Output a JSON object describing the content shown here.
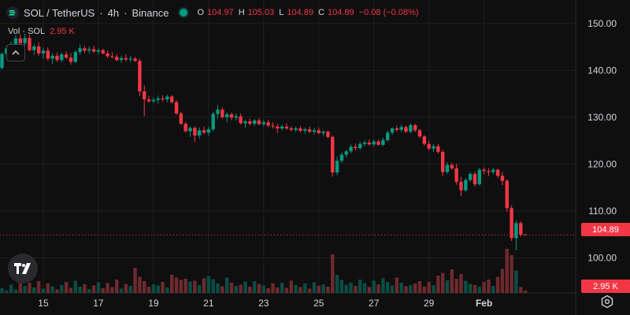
{
  "header": {
    "symbol": "SOL / TetherUS",
    "interval": "4h",
    "exchange": "Binance",
    "separator": "·",
    "ohlc": {
      "o_label": "O",
      "o_value": "104.97",
      "h_label": "H",
      "h_value": "105.03",
      "l_label": "L",
      "l_value": "104.89",
      "c_label": "C",
      "c_value": "104.89",
      "change": "−0.08 (−0.08%)"
    }
  },
  "volume_legend": {
    "label": "Vol · SOL",
    "value": "2.95 K"
  },
  "badges": {
    "last_price": "104.89",
    "last_volume": "2.95 K"
  },
  "colors": {
    "up": "#089981",
    "down": "#f23645",
    "up_volume": "#0b4d44",
    "down_volume": "#6e2a2e",
    "background": "#0f0f0f",
    "grid": "#1f1f1f",
    "text": "#d1d4dc"
  },
  "icons": [
    "symbol-icon",
    "market-status-icon",
    "collapse-icon",
    "tradingview-logo-icon",
    "settings-icon"
  ],
  "chart_data": {
    "type": "candlestick",
    "title": "SOL / TetherUS · 4h · Binance",
    "y_ticks": [
      100,
      110,
      120,
      130,
      140,
      150
    ],
    "y_tick_labels": [
      "100.00",
      "110.00",
      "120.00",
      "130.00",
      "140.00",
      "150.00"
    ],
    "ylim": [
      92.5,
      155
    ],
    "x_tick_labels": [
      "15",
      "17",
      "19",
      "21",
      "23",
      "25",
      "27",
      "29",
      "Feb"
    ],
    "x_tick_candle_index": [
      9,
      21,
      33,
      45,
      57,
      69,
      81,
      93,
      105
    ],
    "grid": true,
    "candles": [
      [
        140.5,
        143.8,
        140.2,
        143.5
      ],
      [
        143.5,
        145.2,
        142.9,
        144.7
      ],
      [
        144.7,
        146.1,
        143.8,
        145.6
      ],
      [
        145.6,
        147.5,
        145.0,
        146.8
      ],
      [
        146.8,
        147.6,
        145.3,
        145.8
      ],
      [
        145.8,
        147.8,
        145.2,
        146.9
      ],
      [
        146.9,
        147.6,
        144.0,
        144.3
      ],
      [
        144.3,
        145.6,
        143.3,
        145.1
      ],
      [
        145.1,
        146.0,
        143.1,
        143.6
      ],
      [
        143.6,
        144.8,
        142.5,
        144.2
      ],
      [
        144.2,
        144.9,
        142.1,
        142.5
      ],
      [
        142.5,
        143.6,
        141.4,
        143.1
      ],
      [
        143.1,
        143.8,
        141.8,
        142.2
      ],
      [
        142.2,
        143.8,
        141.7,
        143.4
      ],
      [
        143.4,
        144.1,
        142.4,
        142.7
      ],
      [
        142.7,
        143.7,
        141.2,
        141.8
      ],
      [
        141.8,
        144.3,
        141.5,
        143.9
      ],
      [
        143.9,
        145.5,
        143.3,
        144.7
      ],
      [
        144.7,
        145.2,
        143.7,
        144.2
      ],
      [
        144.2,
        145.1,
        143.6,
        144.5
      ],
      [
        144.5,
        145.2,
        143.7,
        144.0
      ],
      [
        144.0,
        144.7,
        143.3,
        144.3
      ],
      [
        144.3,
        144.6,
        143.4,
        143.6
      ],
      [
        143.6,
        144.2,
        142.6,
        143.0
      ],
      [
        143.0,
        143.9,
        142.5,
        142.9
      ],
      [
        142.9,
        143.4,
        141.9,
        142.2
      ],
      [
        142.2,
        143.1,
        141.6,
        142.6
      ],
      [
        142.6,
        143.4,
        141.9,
        142.3
      ],
      [
        142.3,
        143.1,
        141.7,
        142.5
      ],
      [
        142.5,
        142.9,
        141.8,
        142.0
      ],
      [
        142.0,
        142.5,
        134.5,
        135.5
      ],
      [
        135.5,
        136.8,
        130.2,
        133.8
      ],
      [
        133.8,
        134.6,
        133.0,
        133.4
      ],
      [
        133.4,
        134.3,
        133.0,
        133.7
      ],
      [
        133.7,
        134.6,
        132.9,
        134.0
      ],
      [
        134.0,
        134.7,
        133.4,
        133.8
      ],
      [
        133.8,
        134.8,
        133.2,
        134.4
      ],
      [
        134.4,
        134.7,
        132.9,
        133.2
      ],
      [
        133.2,
        133.7,
        130.5,
        130.8
      ],
      [
        130.8,
        131.2,
        128.3,
        128.6
      ],
      [
        128.6,
        129.0,
        126.7,
        127.0
      ],
      [
        127.0,
        128.1,
        125.8,
        127.7
      ],
      [
        127.7,
        128.1,
        124.7,
        126.1
      ],
      [
        126.1,
        127.8,
        125.4,
        127.2
      ],
      [
        127.2,
        128.0,
        126.3,
        126.7
      ],
      [
        126.7,
        127.9,
        126.0,
        127.4
      ],
      [
        127.4,
        131.1,
        127.0,
        130.7
      ],
      [
        130.7,
        132.6,
        129.7,
        131.6
      ],
      [
        131.6,
        132.1,
        129.7,
        130.0
      ],
      [
        130.0,
        131.0,
        128.9,
        130.6
      ],
      [
        130.6,
        131.0,
        129.4,
        129.9
      ],
      [
        129.9,
        130.8,
        129.3,
        130.2
      ],
      [
        130.2,
        130.8,
        128.4,
        128.7
      ],
      [
        128.7,
        129.5,
        127.8,
        129.1
      ],
      [
        129.1,
        129.7,
        128.2,
        128.6
      ],
      [
        128.6,
        129.6,
        128.1,
        129.3
      ],
      [
        129.3,
        129.8,
        128.3,
        128.5
      ],
      [
        128.5,
        129.4,
        128.0,
        128.9
      ],
      [
        128.9,
        129.4,
        127.9,
        128.2
      ],
      [
        128.2,
        128.9,
        127.6,
        128.0
      ],
      [
        128.0,
        128.6,
        126.6,
        127.6
      ],
      [
        127.6,
        128.4,
        127.2,
        128.0
      ],
      [
        128.0,
        128.7,
        127.3,
        127.6
      ],
      [
        127.6,
        128.1,
        126.9,
        127.3
      ],
      [
        127.3,
        128.0,
        126.8,
        127.6
      ],
      [
        127.6,
        128.1,
        126.7,
        127.1
      ],
      [
        127.1,
        127.8,
        126.5,
        127.4
      ],
      [
        127.4,
        128.0,
        126.6,
        126.9
      ],
      [
        126.9,
        127.7,
        126.3,
        127.2
      ],
      [
        127.2,
        127.8,
        126.4,
        126.6
      ],
      [
        126.6,
        127.2,
        126.0,
        126.9
      ],
      [
        126.9,
        127.2,
        125.5,
        125.8
      ],
      [
        125.8,
        126.1,
        117.3,
        118.2
      ],
      [
        118.2,
        121.6,
        117.6,
        120.7
      ],
      [
        120.7,
        122.5,
        120.2,
        122.0
      ],
      [
        122.0,
        123.1,
        121.4,
        122.7
      ],
      [
        122.7,
        124.2,
        122.3,
        123.7
      ],
      [
        123.7,
        124.4,
        122.9,
        123.4
      ],
      [
        123.4,
        124.8,
        123.0,
        124.3
      ],
      [
        124.3,
        125.1,
        123.8,
        124.6
      ],
      [
        124.6,
        125.3,
        123.9,
        124.2
      ],
      [
        124.2,
        125.2,
        123.7,
        124.8
      ],
      [
        124.8,
        125.2,
        123.9,
        124.1
      ],
      [
        124.1,
        125.6,
        123.8,
        125.1
      ],
      [
        125.1,
        127.2,
        124.8,
        126.7
      ],
      [
        126.7,
        127.9,
        126.2,
        127.6
      ],
      [
        127.6,
        128.2,
        126.9,
        127.3
      ],
      [
        127.3,
        128.4,
        126.8,
        127.9
      ],
      [
        127.9,
        128.2,
        126.6,
        126.9
      ],
      [
        126.9,
        128.7,
        126.5,
        128.3
      ],
      [
        128.3,
        128.6,
        126.8,
        127.2
      ],
      [
        127.2,
        127.5,
        125.5,
        125.9
      ],
      [
        125.9,
        126.2,
        123.9,
        124.3
      ],
      [
        124.3,
        125.0,
        122.9,
        123.3
      ],
      [
        123.3,
        124.3,
        122.6,
        123.8
      ],
      [
        123.8,
        124.3,
        122.2,
        122.6
      ],
      [
        122.6,
        123.0,
        117.4,
        118.3
      ],
      [
        118.3,
        120.4,
        117.9,
        119.8
      ],
      [
        119.8,
        120.3,
        118.7,
        119.1
      ],
      [
        119.1,
        120.1,
        115.6,
        116.2
      ],
      [
        116.2,
        117.3,
        113.1,
        114.4
      ],
      [
        114.4,
        117.0,
        114.0,
        116.6
      ],
      [
        116.6,
        118.3,
        116.2,
        117.9
      ],
      [
        117.9,
        118.4,
        115.2,
        115.7
      ],
      [
        115.7,
        119.2,
        115.4,
        118.8
      ],
      [
        118.8,
        119.3,
        117.8,
        118.5
      ],
      [
        118.5,
        119.1,
        117.4,
        118.3
      ],
      [
        118.3,
        119.2,
        117.8,
        118.8
      ],
      [
        118.8,
        119.0,
        117.1,
        117.5
      ],
      [
        117.5,
        118.3,
        115.5,
        116.4
      ],
      [
        116.4,
        116.8,
        109.8,
        110.6
      ],
      [
        110.6,
        111.2,
        103.6,
        104.2
      ],
      [
        104.2,
        108.0,
        101.6,
        107.4
      ],
      [
        107.4,
        107.8,
        104.5,
        104.97
      ],
      [
        104.97,
        105.03,
        104.89,
        104.89
      ]
    ],
    "volume_values": [
      [
        1.2,
        0.6,
        2.1,
        0.9,
        3.2,
        1.8,
        2.6,
        1.4,
        3.0,
        1.1
      ],
      [
        2.4,
        1.7,
        0.9,
        2.0,
        2.8,
        1.3,
        3.1,
        1.6,
        2.2,
        1.0
      ],
      [
        1.9,
        2.7,
        1.2,
        2.5,
        1.5,
        3.4,
        1.1,
        2.3,
        1.8,
        6.4
      ],
      [
        4.1,
        3.0,
        1.6,
        2.2,
        1.9,
        2.8,
        1.4,
        4.6,
        3.9,
        3.3
      ],
      [
        3.6,
        2.9,
        3.1,
        2.0,
        3.7,
        4.3,
        3.5,
        2.4,
        1.7,
        3.9
      ],
      [
        2.6,
        1.8,
        2.1,
        2.9,
        1.6,
        3.0,
        2.3,
        1.9,
        1.2,
        2.5
      ],
      [
        1.4,
        2.6,
        1.3,
        3.1,
        2.0,
        1.5,
        2.4,
        1.1,
        2.7,
        1.8
      ],
      [
        2.2,
        1.6,
        9.8,
        4.6,
        3.3,
        2.1,
        2.6,
        1.8,
        3.4,
        2.5
      ],
      [
        1.5,
        3.1,
        2.2,
        3.7,
        2.8,
        1.9,
        3.9,
        2.6,
        1.7,
        2.0
      ],
      [
        2.4,
        3.0,
        1.6,
        2.8,
        1.9,
        4.4,
        5.1,
        3.2,
        6.0,
        3.6
      ],
      [
        4.8,
        3.1,
        2.3,
        2.0,
        1.6,
        2.8,
        3.4,
        1.8,
        4.1,
        6.1
      ],
      [
        11.2,
        9.6,
        5.7,
        1.5,
        0.6
      ]
    ],
    "volume_direction": "colored by candle (up = teal, down = red)"
  }
}
